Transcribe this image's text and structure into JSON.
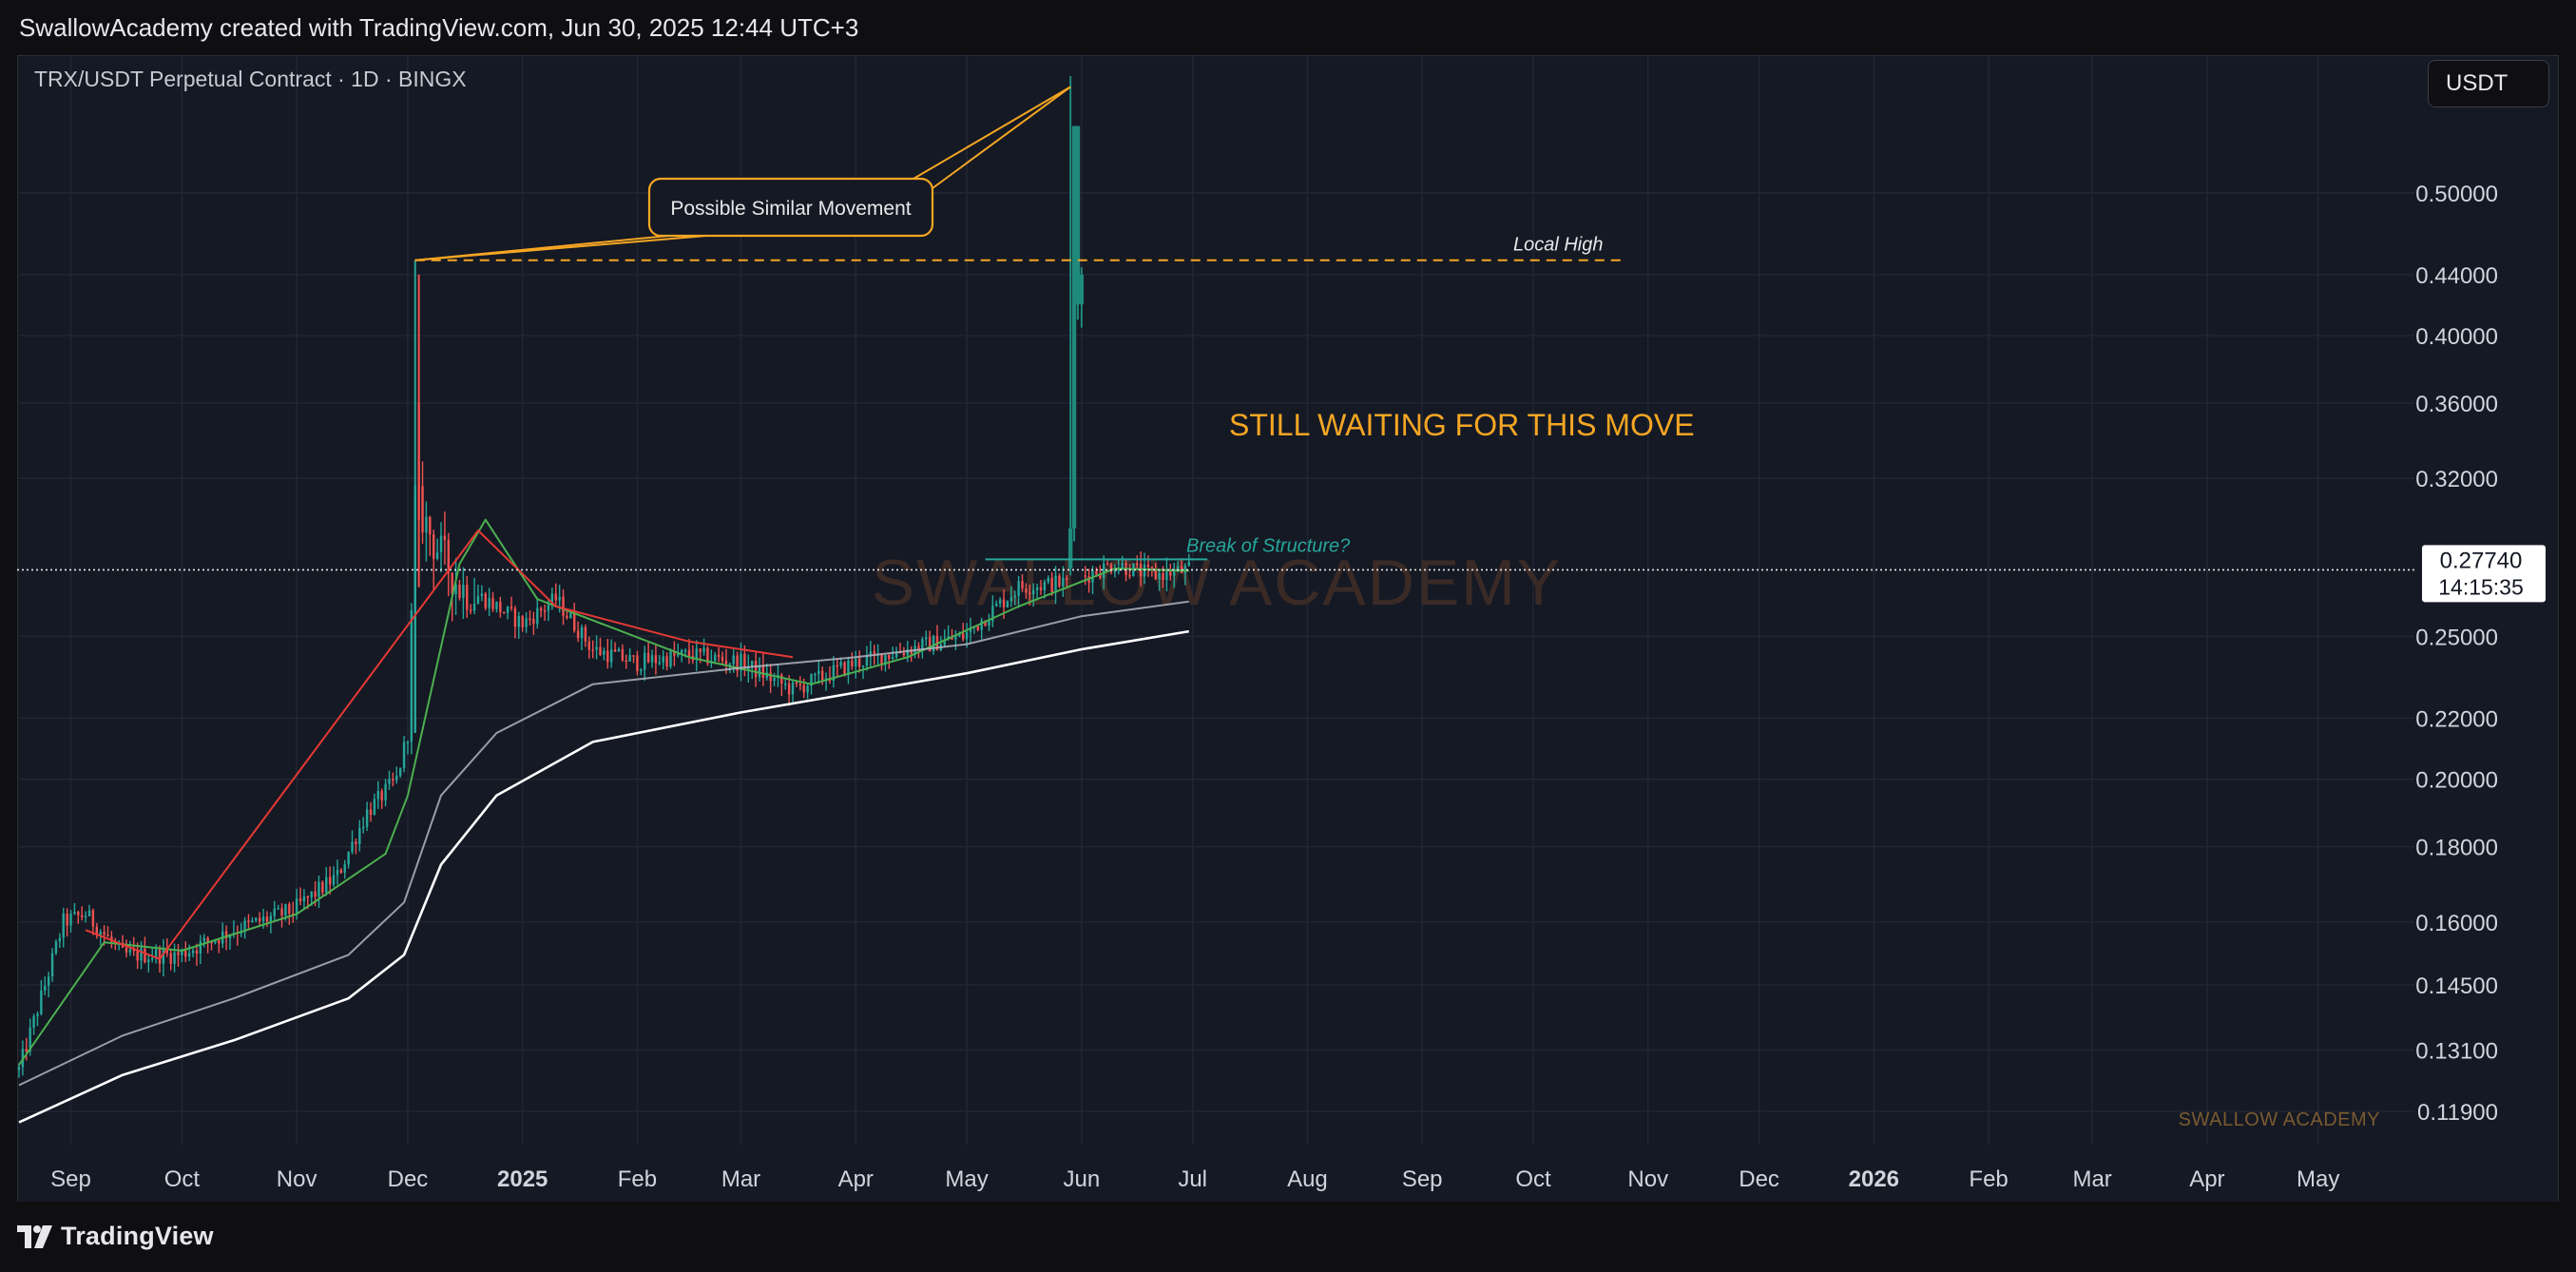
{
  "header": {
    "attribution": "SwallowAcademy created with TradingView.com, Jun 30, 2025 12:44 UTC+3"
  },
  "footer": {
    "logo_text": "TradingView"
  },
  "currency_button": {
    "label": "USDT"
  },
  "colors": {
    "background": "#151924",
    "grid": "#222633",
    "up": "#26a69a",
    "down": "#ef5350",
    "ema_fast": "#4caf50",
    "ema_red": "#e53935",
    "ema_grey": "#b2b5be",
    "ema_white": "#ffffff",
    "annotation": "#f5a623",
    "label_text": "#d1d4dc"
  },
  "chart_data": {
    "type": "candlestick",
    "title": "TRX/USDT Perpetual Contract · 1D · BINGX",
    "scale": "log",
    "ylim": [
      0.113,
      0.62
    ],
    "x_range": [
      "2024-08-18",
      "2026-05-27"
    ],
    "y_ticks": [
      "0.50000",
      "0.44000",
      "0.40000",
      "0.36000",
      "0.32000",
      "0.25000",
      "0.22000",
      "0.20000",
      "0.18000",
      "0.16000",
      "0.14500",
      "0.13100",
      "0.11900"
    ],
    "y_tick_values": [
      0.5,
      0.44,
      0.4,
      0.36,
      0.32,
      0.25,
      0.22,
      0.2,
      0.18,
      0.16,
      0.145,
      0.131,
      0.119
    ],
    "x_ticks": [
      {
        "label": "Sep",
        "date": "2024-09-01",
        "bold": false
      },
      {
        "label": "Oct",
        "date": "2024-10-01",
        "bold": false
      },
      {
        "label": "Nov",
        "date": "2024-11-01",
        "bold": false
      },
      {
        "label": "Dec",
        "date": "2024-12-01",
        "bold": false
      },
      {
        "label": "2025",
        "date": "2025-01-01",
        "bold": true
      },
      {
        "label": "Feb",
        "date": "2025-02-01",
        "bold": false
      },
      {
        "label": "Mar",
        "date": "2025-03-01",
        "bold": false
      },
      {
        "label": "Apr",
        "date": "2025-04-01",
        "bold": false
      },
      {
        "label": "May",
        "date": "2025-05-01",
        "bold": false
      },
      {
        "label": "Jun",
        "date": "2025-06-01",
        "bold": false
      },
      {
        "label": "Jul",
        "date": "2025-07-01",
        "bold": false
      },
      {
        "label": "Aug",
        "date": "2025-08-01",
        "bold": false
      },
      {
        "label": "Sep",
        "date": "2025-09-01",
        "bold": false
      },
      {
        "label": "Oct",
        "date": "2025-10-01",
        "bold": false
      },
      {
        "label": "Nov",
        "date": "2025-11-01",
        "bold": false
      },
      {
        "label": "Dec",
        "date": "2025-12-01",
        "bold": false
      },
      {
        "label": "2026",
        "date": "2026-01-01",
        "bold": true
      },
      {
        "label": "Feb",
        "date": "2026-02-01",
        "bold": false
      },
      {
        "label": "Mar",
        "date": "2026-03-01",
        "bold": false
      },
      {
        "label": "Apr",
        "date": "2026-04-01",
        "bold": false
      },
      {
        "label": "May",
        "date": "2026-05-01",
        "bold": false
      }
    ],
    "price_keypoints": [
      [
        "2024-08-18",
        0.127
      ],
      [
        "2024-08-25",
        0.145
      ],
      [
        "2024-08-30",
        0.16
      ],
      [
        "2024-09-05",
        0.162
      ],
      [
        "2024-09-15",
        0.152
      ],
      [
        "2024-09-30",
        0.152
      ],
      [
        "2024-10-15",
        0.158
      ],
      [
        "2024-10-31",
        0.163
      ],
      [
        "2024-11-12",
        0.172
      ],
      [
        "2024-11-20",
        0.19
      ],
      [
        "2024-11-28",
        0.2
      ],
      [
        "2024-12-01",
        0.215
      ],
      [
        "2024-12-03",
        0.31
      ],
      [
        "2024-12-08",
        0.29
      ],
      [
        "2024-12-15",
        0.27
      ],
      [
        "2024-12-22",
        0.265
      ],
      [
        "2025-01-01",
        0.255
      ],
      [
        "2025-01-10",
        0.265
      ],
      [
        "2025-01-20",
        0.245
      ],
      [
        "2025-02-01",
        0.24
      ],
      [
        "2025-02-15",
        0.243
      ],
      [
        "2025-03-01",
        0.24
      ],
      [
        "2025-03-15",
        0.23
      ],
      [
        "2025-04-01",
        0.24
      ],
      [
        "2025-04-15",
        0.245
      ],
      [
        "2025-04-30",
        0.25
      ],
      [
        "2025-05-15",
        0.27
      ],
      [
        "2025-05-28",
        0.272
      ],
      [
        "2025-06-10",
        0.28
      ],
      [
        "2025-06-20",
        0.275
      ],
      [
        "2025-06-30",
        0.2774
      ]
    ],
    "pump_bars": [
      {
        "date": "2025-05-29",
        "open": 0.278,
        "close": 0.296,
        "high": 0.6,
        "low": 0.275
      },
      {
        "date": "2025-05-30",
        "open": 0.296,
        "close": 0.555,
        "high": 0.555,
        "low": 0.29
      },
      {
        "date": "2025-05-31",
        "open": 0.555,
        "close": 0.42,
        "high": 0.555,
        "low": 0.41
      },
      {
        "date": "2025-06-01",
        "open": 0.42,
        "close": 0.44,
        "high": 0.445,
        "low": 0.405
      }
    ],
    "moving_averages": [
      {
        "color": "#4caf50",
        "points": [
          [
            "2024-08-18",
            0.128
          ],
          [
            "2024-09-10",
            0.155
          ],
          [
            "2024-10-01",
            0.153
          ],
          [
            "2024-11-01",
            0.162
          ],
          [
            "2024-11-25",
            0.178
          ],
          [
            "2024-12-01",
            0.195
          ],
          [
            "2024-12-15",
            0.28
          ],
          [
            "2024-12-22",
            0.3
          ],
          [
            "2025-01-05",
            0.265
          ],
          [
            "2025-02-15",
            0.242
          ],
          [
            "2025-03-20",
            0.232
          ],
          [
            "2025-04-15",
            0.242
          ],
          [
            "2025-05-15",
            0.262
          ],
          [
            "2025-06-10",
            0.278
          ],
          [
            "2025-06-30",
            0.277
          ]
        ]
      },
      {
        "color": "#e53935",
        "points": [
          [
            "2024-09-05",
            0.158
          ],
          [
            "2024-09-25",
            0.151
          ],
          [
            "2024-12-20",
            0.295
          ],
          [
            "2025-01-10",
            0.262
          ],
          [
            "2025-02-15",
            0.248
          ],
          [
            "2025-03-15",
            0.242
          ]
        ]
      },
      {
        "color": "#b2b5be",
        "points": [
          [
            "2024-08-18",
            0.124
          ],
          [
            "2024-09-15",
            0.134
          ],
          [
            "2024-10-15",
            0.142
          ],
          [
            "2024-11-15",
            0.152
          ],
          [
            "2024-11-30",
            0.165
          ],
          [
            "2024-12-10",
            0.195
          ],
          [
            "2024-12-25",
            0.215
          ],
          [
            "2025-01-20",
            0.232
          ],
          [
            "2025-03-01",
            0.238
          ],
          [
            "2025-04-01",
            0.242
          ],
          [
            "2025-05-01",
            0.247
          ],
          [
            "2025-06-01",
            0.258
          ],
          [
            "2025-06-30",
            0.264
          ]
        ]
      },
      {
        "color": "#ffffff",
        "points": [
          [
            "2024-08-18",
            0.117
          ],
          [
            "2024-09-15",
            0.126
          ],
          [
            "2024-10-15",
            0.133
          ],
          [
            "2024-11-15",
            0.142
          ],
          [
            "2024-11-30",
            0.152
          ],
          [
            "2024-12-10",
            0.175
          ],
          [
            "2024-12-25",
            0.195
          ],
          [
            "2025-01-20",
            0.212
          ],
          [
            "2025-03-01",
            0.222
          ],
          [
            "2025-04-01",
            0.229
          ],
          [
            "2025-05-01",
            0.236
          ],
          [
            "2025-06-01",
            0.245
          ],
          [
            "2025-06-30",
            0.252
          ]
        ]
      }
    ],
    "current_price": {
      "value": 0.2774,
      "label": "0.27740",
      "countdown": "14:15:35"
    },
    "annotations": {
      "possible_similar_movement": "Possible Similar Movement",
      "local_high_label": "Local High",
      "local_high_value": 0.45,
      "local_high_start": "2024-12-03",
      "local_high_end": "2025-10-25",
      "still_waiting": "STILL WAITING FOR THIS MOVE",
      "break_of_structure": "Break of Structure?",
      "break_level": 0.282,
      "break_start": "2025-05-06",
      "break_end": "2025-07-05",
      "pump_peak": 0.59,
      "pump_peak_date": "2025-05-29",
      "watermark": "SWALLOW ACADEMY",
      "brand_small": "SWALLOW ACADEMY"
    }
  }
}
